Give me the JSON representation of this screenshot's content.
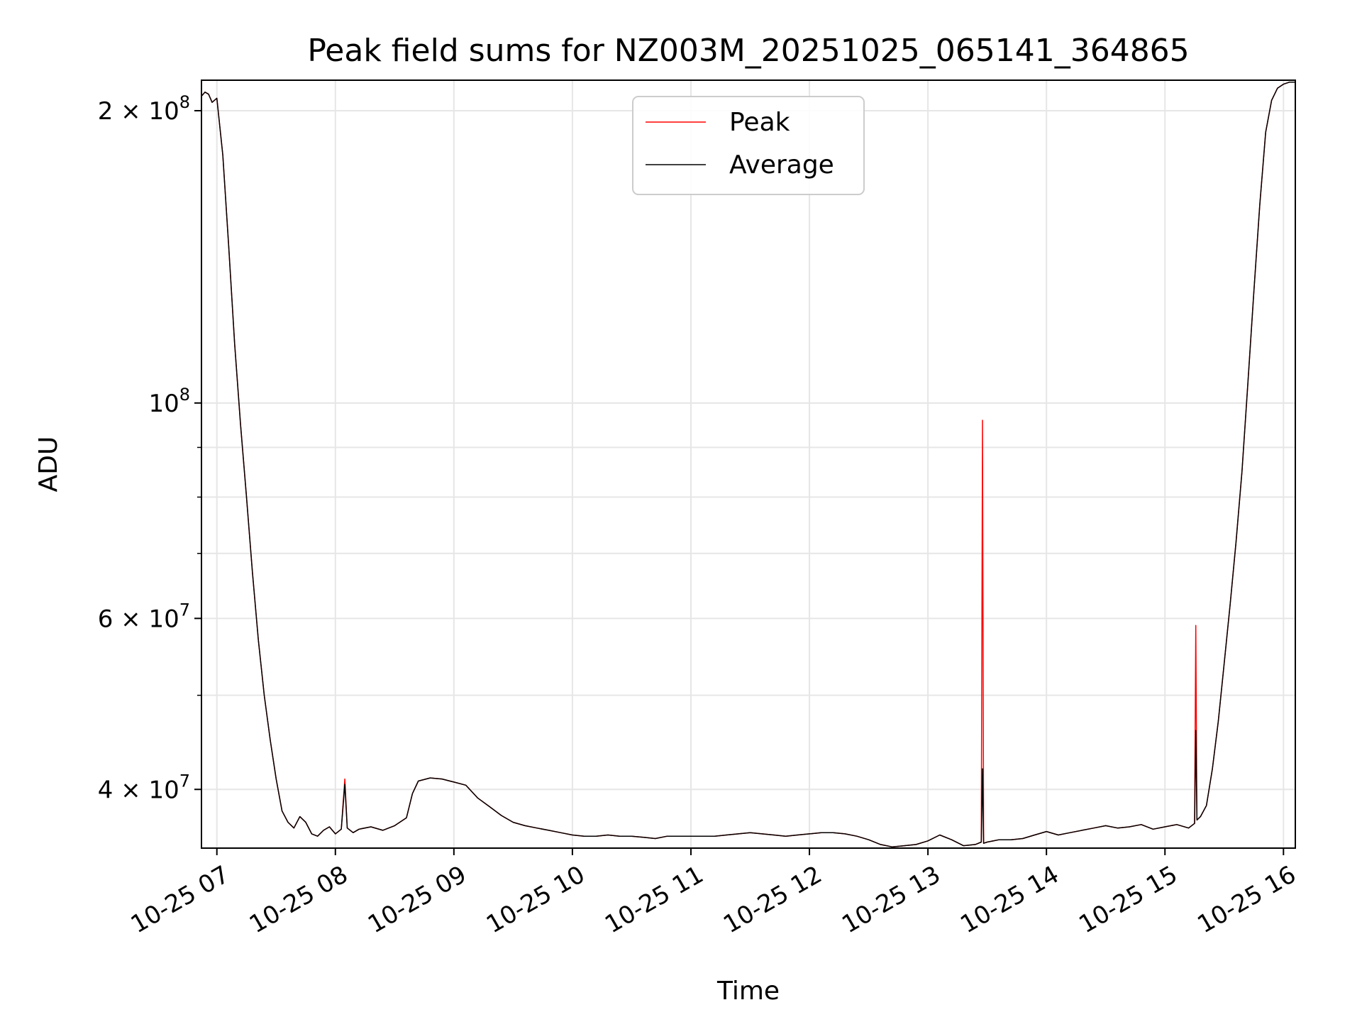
{
  "chart_data": {
    "type": "line",
    "title": "Peak field sums for NZ003M_20251025_065141_364865",
    "xlabel": "Time",
    "ylabel": "ADU",
    "yscale": "log",
    "grid": true,
    "legend_position": "top-center",
    "xlim": [
      6.87,
      16.1
    ],
    "ylim": [
      34800000,
      215000000
    ],
    "x_ticks": [
      {
        "value": 7,
        "label": "10-25 07"
      },
      {
        "value": 8,
        "label": "10-25 08"
      },
      {
        "value": 9,
        "label": "10-25 09"
      },
      {
        "value": 10,
        "label": "10-25 10"
      },
      {
        "value": 11,
        "label": "10-25 11"
      },
      {
        "value": 12,
        "label": "10-25 12"
      },
      {
        "value": 13,
        "label": "10-25 13"
      },
      {
        "value": 14,
        "label": "10-25 14"
      },
      {
        "value": 15,
        "label": "10-25 15"
      },
      {
        "value": 16,
        "label": "10-25 16"
      }
    ],
    "y_major_ticks": [
      {
        "value": 40000000,
        "mant": "4",
        "sep": " × ",
        "base": "10",
        "exp": "7"
      },
      {
        "value": 60000000,
        "mant": "6",
        "sep": " × ",
        "base": "10",
        "exp": "7"
      },
      {
        "value": 100000000,
        "mant": "",
        "sep": "",
        "base": "10",
        "exp": "8"
      },
      {
        "value": 200000000,
        "mant": "2",
        "sep": " × ",
        "base": "10",
        "exp": "8"
      }
    ],
    "y_minor_ticks": [
      50000000,
      70000000,
      80000000,
      90000000
    ],
    "series": [
      {
        "name": "Peak",
        "color": "#ff0000",
        "x": [
          6.87,
          6.9,
          6.93,
          6.96,
          7.0,
          7.05,
          7.1,
          7.15,
          7.2,
          7.25,
          7.3,
          7.35,
          7.4,
          7.45,
          7.5,
          7.55,
          7.6,
          7.65,
          7.7,
          7.75,
          7.8,
          7.85,
          7.9,
          7.95,
          8.0,
          8.05,
          8.08,
          8.1,
          8.15,
          8.2,
          8.3,
          8.4,
          8.5,
          8.6,
          8.65,
          8.7,
          8.8,
          8.9,
          9.0,
          9.1,
          9.2,
          9.3,
          9.4,
          9.5,
          9.6,
          9.7,
          9.8,
          9.9,
          10.0,
          10.1,
          10.2,
          10.3,
          10.4,
          10.5,
          10.6,
          10.7,
          10.8,
          10.9,
          11.0,
          11.1,
          11.2,
          11.3,
          11.4,
          11.5,
          11.6,
          11.7,
          11.8,
          11.9,
          12.0,
          12.1,
          12.2,
          12.3,
          12.4,
          12.5,
          12.6,
          12.7,
          12.8,
          12.9,
          13.0,
          13.1,
          13.2,
          13.3,
          13.4,
          13.45,
          13.46,
          13.47,
          13.5,
          13.6,
          13.7,
          13.8,
          13.9,
          14.0,
          14.1,
          14.2,
          14.3,
          14.4,
          14.5,
          14.6,
          14.7,
          14.8,
          14.9,
          15.0,
          15.1,
          15.2,
          15.25,
          15.26,
          15.27,
          15.3,
          15.35,
          15.4,
          15.45,
          15.5,
          15.55,
          15.6,
          15.65,
          15.7,
          15.75,
          15.8,
          15.85,
          15.9,
          15.95,
          16.0,
          16.05,
          16.1
        ],
        "y": [
          207000000,
          209000000,
          208000000,
          204000000,
          206000000,
          180000000,
          145000000,
          115000000,
          95000000,
          80000000,
          67000000,
          57000000,
          50000000,
          45000000,
          41000000,
          38000000,
          37000000,
          36500000,
          37500000,
          37000000,
          36000000,
          35800000,
          36300000,
          36600000,
          36000000,
          36400000,
          41000000,
          36500000,
          36100000,
          36400000,
          36600000,
          36300000,
          36700000,
          37400000,
          39600000,
          40800000,
          41100000,
          41000000,
          40700000,
          40400000,
          39200000,
          38400000,
          37600000,
          37000000,
          36700000,
          36500000,
          36300000,
          36100000,
          35900000,
          35800000,
          35800000,
          35900000,
          35800000,
          35800000,
          35700000,
          35600000,
          35800000,
          35800000,
          35800000,
          35800000,
          35800000,
          35900000,
          36000000,
          36100000,
          36000000,
          35900000,
          35800000,
          35900000,
          36000000,
          36100000,
          36100000,
          36000000,
          35800000,
          35500000,
          35100000,
          34900000,
          35000000,
          35100000,
          35400000,
          35900000,
          35500000,
          35000000,
          35100000,
          35300000,
          96000000,
          35200000,
          35300000,
          35500000,
          35500000,
          35600000,
          35900000,
          36200000,
          35900000,
          36100000,
          36300000,
          36500000,
          36700000,
          36500000,
          36600000,
          36800000,
          36400000,
          36600000,
          36800000,
          36500000,
          36900000,
          59000000,
          37200000,
          37500000,
          38500000,
          42000000,
          47000000,
          54000000,
          62000000,
          72000000,
          85000000,
          105000000,
          130000000,
          160000000,
          190000000,
          205000000,
          211000000,
          213000000,
          214000000,
          214000000
        ]
      },
      {
        "name": "Average",
        "color": "#000000",
        "x": [
          6.87,
          6.9,
          6.93,
          6.96,
          7.0,
          7.05,
          7.1,
          7.15,
          7.2,
          7.25,
          7.3,
          7.35,
          7.4,
          7.45,
          7.5,
          7.55,
          7.6,
          7.65,
          7.7,
          7.75,
          7.8,
          7.85,
          7.9,
          7.95,
          8.0,
          8.05,
          8.08,
          8.1,
          8.15,
          8.2,
          8.3,
          8.4,
          8.5,
          8.6,
          8.65,
          8.7,
          8.8,
          8.9,
          9.0,
          9.1,
          9.2,
          9.3,
          9.4,
          9.5,
          9.6,
          9.7,
          9.8,
          9.9,
          10.0,
          10.1,
          10.2,
          10.3,
          10.4,
          10.5,
          10.6,
          10.7,
          10.8,
          10.9,
          11.0,
          11.1,
          11.2,
          11.3,
          11.4,
          11.5,
          11.6,
          11.7,
          11.8,
          11.9,
          12.0,
          12.1,
          12.2,
          12.3,
          12.4,
          12.5,
          12.6,
          12.7,
          12.8,
          12.9,
          13.0,
          13.1,
          13.2,
          13.3,
          13.4,
          13.45,
          13.46,
          13.47,
          13.5,
          13.6,
          13.7,
          13.8,
          13.9,
          14.0,
          14.1,
          14.2,
          14.3,
          14.4,
          14.5,
          14.6,
          14.7,
          14.8,
          14.9,
          15.0,
          15.1,
          15.2,
          15.25,
          15.26,
          15.27,
          15.3,
          15.35,
          15.4,
          15.45,
          15.5,
          15.55,
          15.6,
          15.65,
          15.7,
          15.75,
          15.8,
          15.85,
          15.9,
          15.95,
          16.0,
          16.05,
          16.1
        ],
        "y": [
          207000000,
          209000000,
          208000000,
          204000000,
          206000000,
          180000000,
          145000000,
          115000000,
          95000000,
          80000000,
          67000000,
          57000000,
          50000000,
          45000000,
          41000000,
          38000000,
          37000000,
          36500000,
          37500000,
          37000000,
          36000000,
          35800000,
          36300000,
          36600000,
          36000000,
          36400000,
          40500000,
          36500000,
          36100000,
          36400000,
          36600000,
          36300000,
          36700000,
          37400000,
          39600000,
          40800000,
          41100000,
          41000000,
          40700000,
          40400000,
          39200000,
          38400000,
          37600000,
          37000000,
          36700000,
          36500000,
          36300000,
          36100000,
          35900000,
          35800000,
          35800000,
          35900000,
          35800000,
          35800000,
          35700000,
          35600000,
          35800000,
          35800000,
          35800000,
          35800000,
          35800000,
          35900000,
          36000000,
          36100000,
          36000000,
          35900000,
          35800000,
          35900000,
          36000000,
          36100000,
          36100000,
          36000000,
          35800000,
          35500000,
          35100000,
          34900000,
          35000000,
          35100000,
          35400000,
          35900000,
          35500000,
          35000000,
          35100000,
          35300000,
          42000000,
          35200000,
          35300000,
          35500000,
          35500000,
          35600000,
          35900000,
          36200000,
          35900000,
          36100000,
          36300000,
          36500000,
          36700000,
          36500000,
          36600000,
          36800000,
          36400000,
          36600000,
          36800000,
          36500000,
          36900000,
          46000000,
          37200000,
          37500000,
          38500000,
          42000000,
          47000000,
          54000000,
          62000000,
          72000000,
          85000000,
          105000000,
          130000000,
          160000000,
          190000000,
          205000000,
          211000000,
          213000000,
          214000000,
          214000000
        ]
      }
    ]
  }
}
